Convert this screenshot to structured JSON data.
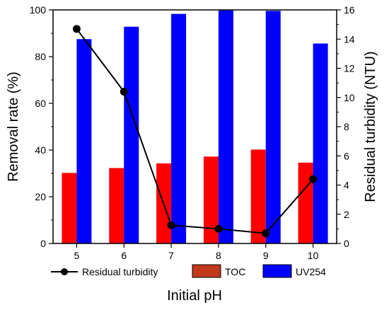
{
  "chart_data": {
    "type": "bar",
    "categories": [
      "5",
      "6",
      "7",
      "8",
      "9",
      "10"
    ],
    "xlabel": "Initial pH",
    "ylabel": "Removal rate (%)",
    "y2label": "Residual turbidity (NTU)",
    "ylim": [
      0,
      100
    ],
    "y2lim": [
      0,
      16
    ],
    "yticks": [
      0,
      20,
      40,
      60,
      80,
      100
    ],
    "y2ticks": [
      0,
      2,
      4,
      6,
      8,
      10,
      12,
      14,
      16
    ],
    "grid": false,
    "legend_position": "bottom",
    "series": [
      {
        "name": "TOC",
        "type": "bar",
        "axis": "left",
        "color": "#ff0000",
        "values": [
          30.2,
          32.3,
          34.3,
          37.2,
          40.2,
          34.6
        ]
      },
      {
        "name": "UV254",
        "type": "bar",
        "axis": "left",
        "color": "#0000ff",
        "values": [
          87.5,
          92.8,
          98.3,
          99.8,
          99.6,
          85.6
        ]
      },
      {
        "name": "Residual turbidity",
        "type": "line",
        "axis": "right",
        "color": "#000000",
        "values": [
          14.7,
          10.4,
          1.25,
          1.0,
          0.7,
          4.4
        ]
      }
    ]
  }
}
